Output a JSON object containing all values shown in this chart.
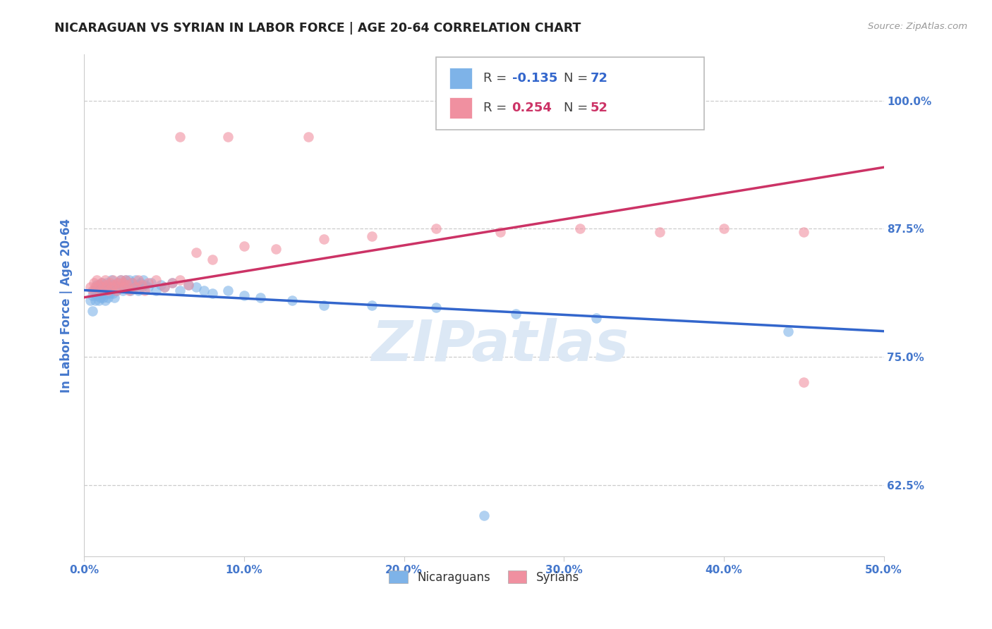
{
  "title": "NICARAGUAN VS SYRIAN IN LABOR FORCE | AGE 20-64 CORRELATION CHART",
  "source": "Source: ZipAtlas.com",
  "xlabel_ticks": [
    "0.0%",
    "10.0%",
    "20.0%",
    "30.0%",
    "40.0%",
    "50.0%"
  ],
  "xlabel_vals": [
    0.0,
    0.1,
    0.2,
    0.3,
    0.4,
    0.5
  ],
  "ylabel": "In Labor Force | Age 20-64",
  "ylabel_ticks": [
    "62.5%",
    "75.0%",
    "87.5%",
    "100.0%"
  ],
  "ylabel_vals": [
    0.625,
    0.75,
    0.875,
    1.0
  ],
  "xlim": [
    0.0,
    0.5
  ],
  "ylim": [
    0.555,
    1.045
  ],
  "legend_color1": "#7eb3e8",
  "legend_color2": "#f090a0",
  "trendline_color1": "#3366cc",
  "trendline_color2": "#cc3366",
  "scatter_color1": "#7eb3e8",
  "scatter_color2": "#f090a0",
  "watermark": "ZIPatlas",
  "watermark_color": "#dce8f5",
  "axis_label_color": "#4477cc",
  "title_color": "#222222",
  "grid_color": "#cccccc",
  "nicaraguan_x": [
    0.004,
    0.005,
    0.005,
    0.006,
    0.007,
    0.007,
    0.008,
    0.008,
    0.009,
    0.009,
    0.01,
    0.01,
    0.01,
    0.011,
    0.011,
    0.012,
    0.012,
    0.013,
    0.013,
    0.014,
    0.014,
    0.015,
    0.015,
    0.016,
    0.016,
    0.017,
    0.017,
    0.018,
    0.018,
    0.019,
    0.019,
    0.02,
    0.021,
    0.022,
    0.023,
    0.024,
    0.025,
    0.026,
    0.027,
    0.028,
    0.029,
    0.03,
    0.031,
    0.032,
    0.033,
    0.034,
    0.035,
    0.036,
    0.037,
    0.038,
    0.04,
    0.042,
    0.045,
    0.048,
    0.05,
    0.055,
    0.06,
    0.065,
    0.07,
    0.075,
    0.08,
    0.09,
    0.1,
    0.11,
    0.13,
    0.15,
    0.18,
    0.22,
    0.27,
    0.32,
    0.44,
    0.25
  ],
  "nicaraguan_y": [
    0.805,
    0.81,
    0.795,
    0.815,
    0.815,
    0.805,
    0.82,
    0.81,
    0.815,
    0.805,
    0.82,
    0.815,
    0.808,
    0.822,
    0.812,
    0.818,
    0.808,
    0.815,
    0.805,
    0.822,
    0.812,
    0.818,
    0.808,
    0.82,
    0.812,
    0.825,
    0.815,
    0.82,
    0.812,
    0.818,
    0.808,
    0.815,
    0.822,
    0.818,
    0.825,
    0.815,
    0.822,
    0.825,
    0.818,
    0.825,
    0.815,
    0.822,
    0.818,
    0.825,
    0.82,
    0.815,
    0.822,
    0.818,
    0.825,
    0.82,
    0.818,
    0.822,
    0.815,
    0.82,
    0.818,
    0.822,
    0.815,
    0.82,
    0.818,
    0.815,
    0.812,
    0.815,
    0.81,
    0.808,
    0.805,
    0.8,
    0.8,
    0.798,
    0.792,
    0.788,
    0.775,
    0.595
  ],
  "syrian_x": [
    0.004,
    0.005,
    0.006,
    0.007,
    0.008,
    0.009,
    0.01,
    0.011,
    0.012,
    0.013,
    0.014,
    0.015,
    0.016,
    0.017,
    0.018,
    0.019,
    0.02,
    0.021,
    0.022,
    0.023,
    0.024,
    0.025,
    0.026,
    0.027,
    0.028,
    0.03,
    0.032,
    0.034,
    0.036,
    0.038,
    0.04,
    0.045,
    0.05,
    0.055,
    0.06,
    0.065,
    0.07,
    0.08,
    0.1,
    0.12,
    0.15,
    0.18,
    0.22,
    0.26,
    0.31,
    0.36,
    0.4,
    0.45,
    0.06,
    0.09,
    0.14,
    0.45
  ],
  "syrian_y": [
    0.818,
    0.815,
    0.822,
    0.818,
    0.825,
    0.82,
    0.815,
    0.822,
    0.818,
    0.825,
    0.82,
    0.815,
    0.822,
    0.818,
    0.825,
    0.82,
    0.815,
    0.822,
    0.818,
    0.825,
    0.822,
    0.818,
    0.825,
    0.82,
    0.815,
    0.822,
    0.818,
    0.825,
    0.82,
    0.815,
    0.822,
    0.825,
    0.818,
    0.822,
    0.825,
    0.82,
    0.852,
    0.845,
    0.858,
    0.855,
    0.865,
    0.868,
    0.875,
    0.872,
    0.875,
    0.872,
    0.875,
    0.872,
    0.965,
    0.965,
    0.965,
    0.725
  ],
  "trendline_blue_x0": 0.0,
  "trendline_blue_y0": 0.815,
  "trendline_blue_x1": 0.5,
  "trendline_blue_y1": 0.775,
  "trendline_pink_x0": 0.0,
  "trendline_pink_y0": 0.808,
  "trendline_pink_x1": 0.5,
  "trendline_pink_y1": 0.935
}
